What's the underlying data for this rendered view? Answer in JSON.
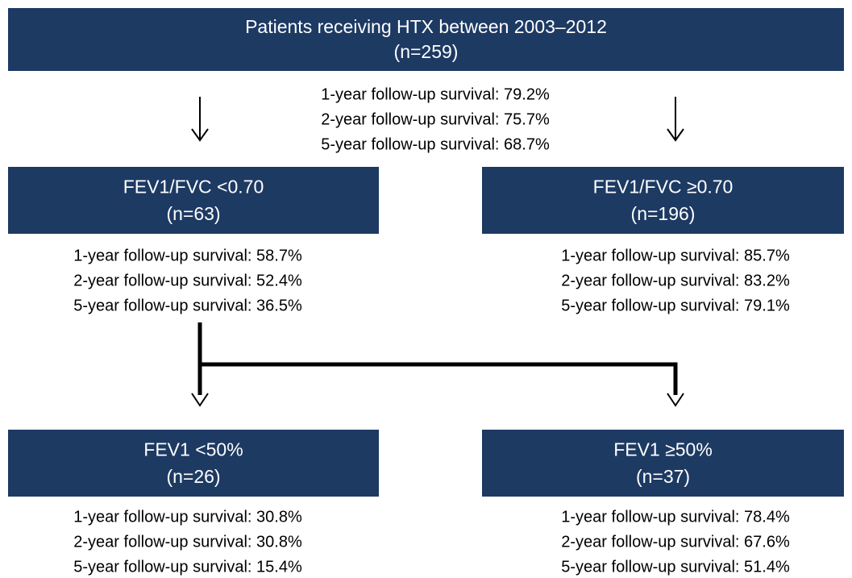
{
  "nodes": [
    {
      "title": "Patients receiving HTX between 2003–2012",
      "n": "(n=259)",
      "survival": [
        "1-year follow-up survival: 79.2%",
        "2-year follow-up survival: 75.7%",
        "5-year follow-up survival: 68.7%"
      ]
    },
    {
      "title": "FEV1/FVC <0.70",
      "n": "(n=63)",
      "survival": [
        "1-year follow-up survival: 58.7%",
        "2-year follow-up survival: 52.4%",
        "5-year follow-up survival: 36.5%"
      ]
    },
    {
      "title": "FEV1/FVC ≥0.70",
      "n": "(n=196)",
      "survival": [
        "1-year follow-up survival: 85.7%",
        "2-year follow-up survival: 83.2%",
        "5-year follow-up survival: 79.1%"
      ]
    },
    {
      "title": "FEV1 <50%",
      "n": "(n=26)",
      "survival": [
        "1-year follow-up survival: 30.8%",
        "2-year follow-up survival: 30.8%",
        "5-year follow-up survival: 15.4%"
      ]
    },
    {
      "title": "FEV1 ≥50%",
      "n": "(n=37)",
      "survival": [
        "1-year follow-up survival: 78.4%",
        "2-year follow-up survival: 67.6%",
        "5-year follow-up survival: 51.4%"
      ]
    }
  ]
}
